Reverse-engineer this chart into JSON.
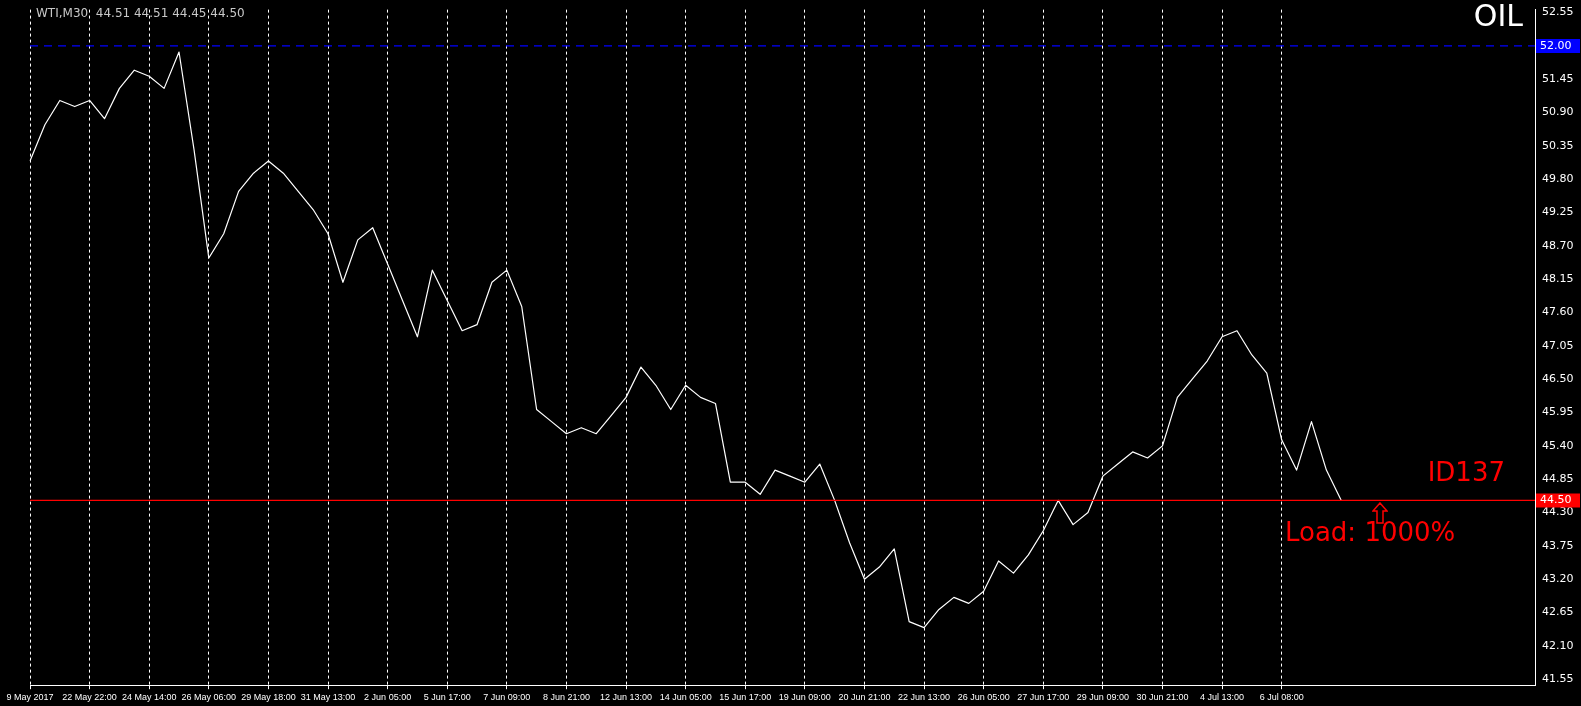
{
  "chart_data": {
    "type": "line",
    "title": "OIL",
    "annotations": [
      "WTI,M30  44.51 44.51 44.45 44.50",
      "ID137",
      "Load: 1000%"
    ],
    "categories": [
      "9 May 2017",
      null,
      null,
      null,
      "22 May 22:00",
      null,
      null,
      null,
      "24 May 14:00",
      null,
      null,
      null,
      "26 May 06:00",
      null,
      null,
      null,
      "29 May 18:00",
      null,
      null,
      null,
      "31 May 13:00",
      null,
      null,
      null,
      "2 Jun 05:00",
      null,
      null,
      null,
      "5 Jun 17:00",
      null,
      null,
      null,
      "7 Jun 09:00",
      null,
      null,
      null,
      "8 Jun 21:00",
      null,
      null,
      null,
      "12 Jun 13:00",
      null,
      null,
      null,
      "14 Jun 05:00",
      null,
      null,
      null,
      "15 Jun 17:00",
      null,
      null,
      null,
      "19 Jun 09:00",
      null,
      null,
      null,
      "20 Jun 21:00",
      null,
      null,
      null,
      "22 Jun 13:00",
      null,
      null,
      null,
      "26 Jun 05:00",
      null,
      null,
      null,
      "27 Jun 17:00",
      null,
      null,
      null,
      "29 Jun 09:00",
      null,
      null,
      null,
      "30 Jun 21:00",
      null,
      null,
      null,
      "4 Jul 13:00",
      null,
      null,
      null,
      "6 Jul 08:00",
      null,
      null,
      null,
      null,
      null,
      null,
      null,
      null,
      null,
      null,
      null,
      null,
      null,
      null,
      null,
      null,
      null
    ],
    "series": [
      {
        "color": "#ffffff",
        "values": [
          50.1,
          50.7,
          51.1,
          51.0,
          51.1,
          50.8,
          51.3,
          51.6,
          51.5,
          51.3,
          51.9,
          50.3,
          48.5,
          48.9,
          49.6,
          49.9,
          50.1,
          49.9,
          49.6,
          49.3,
          48.9,
          48.1,
          48.8,
          49.0,
          48.4,
          47.8,
          47.2,
          48.3,
          47.8,
          47.3,
          47.4,
          48.1,
          48.3,
          47.7,
          46.0,
          45.8,
          45.6,
          45.7,
          45.6,
          45.9,
          46.2,
          46.7,
          46.4,
          46.0,
          46.4,
          46.2,
          46.1,
          44.8,
          44.8,
          44.6,
          45.0,
          44.9,
          44.8,
          45.1,
          44.5,
          43.8,
          43.2,
          43.4,
          43.7,
          42.5,
          42.4,
          42.7,
          42.9,
          42.8,
          43.0,
          43.5,
          43.3,
          43.6,
          44.0,
          44.5,
          44.1,
          44.3,
          44.9,
          45.1,
          45.3,
          45.2,
          45.4,
          46.2,
          46.5,
          46.8,
          47.2,
          47.3,
          46.9,
          46.6,
          45.5,
          45.0,
          45.8,
          45.0,
          44.5,
          null,
          null,
          null,
          null,
          null,
          null,
          null,
          null,
          null,
          null,
          null,
          null,
          null
        ]
      }
    ],
    "ylim": [
      41.45,
      52.6
    ],
    "yticks": [
      41.55,
      {
        "value": 42.1,
        "label": "42.10"
      },
      42.65,
      {
        "value": 43.2,
        "label": "43.20"
      },
      43.75,
      {
        "value": 44.3,
        "label": "44.30"
      },
      44.85,
      {
        "value": 45.4,
        "label": "45.40"
      },
      45.95,
      {
        "value": 46.5,
        "label": "46.50"
      },
      47.05,
      {
        "value": 47.6,
        "label": "47.60"
      },
      48.15,
      {
        "value": 48.7,
        "label": "48.70"
      },
      49.25,
      {
        "value": 49.8,
        "label": "49.80"
      },
      50.35,
      {
        "value": 50.9,
        "label": "50.90"
      },
      51.45,
      52.55
    ],
    "ref_lines": [
      {
        "axis": "y",
        "value": 52.0,
        "label": "52.00",
        "color": "#0000ff",
        "line_style": "dashed"
      },
      {
        "axis": "y",
        "value": 44.5,
        "label": "44.50",
        "color": "#ff0000",
        "line_style": "solid"
      }
    ],
    "grid": "x",
    "legend": false,
    "marker": "none",
    "line_style": "solid"
  }
}
